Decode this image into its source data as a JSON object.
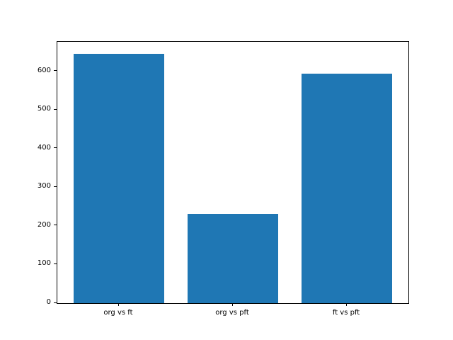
{
  "chart_data": {
    "type": "bar",
    "categories": [
      "org vs ft",
      "org vs pft",
      "ft vs pft"
    ],
    "values": [
      645,
      232,
      595
    ],
    "title": "",
    "xlabel": "",
    "ylabel": "",
    "ylim": [
      0,
      677
    ],
    "yticks": [
      0,
      100,
      200,
      300,
      400,
      500,
      600
    ],
    "bar_color": "#1f77b4",
    "grid": false,
    "legend": "none"
  }
}
